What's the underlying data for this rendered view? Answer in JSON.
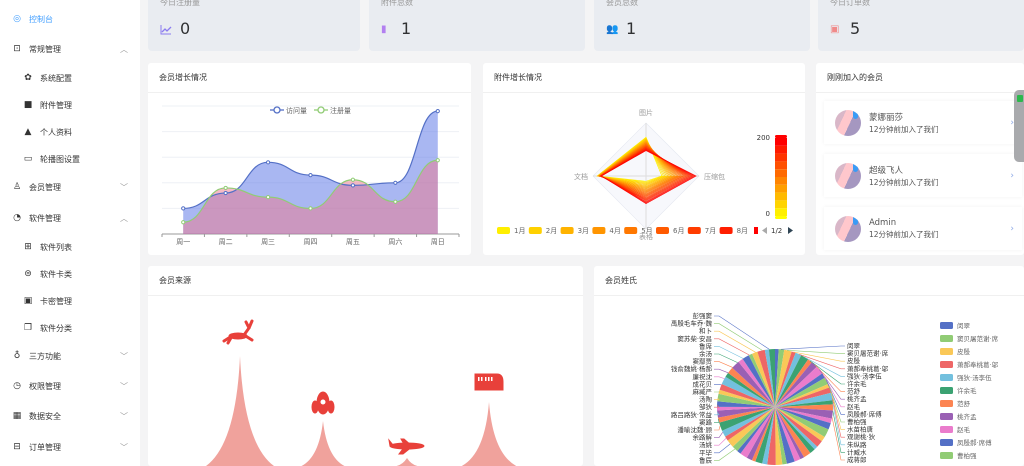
{
  "sidebar": {
    "items": [
      {
        "label": "控制台",
        "icon": "dashboard-icon",
        "active": true
      },
      {
        "label": "常规管理",
        "icon": "shop-icon",
        "expanded": true
      },
      {
        "label": "系统配置",
        "icon": "gear-icon",
        "sub": true
      },
      {
        "label": "附件管理",
        "icon": "folder-icon",
        "sub": true
      },
      {
        "label": "个人资料",
        "icon": "user-icon",
        "sub": true
      },
      {
        "label": "轮播图设置",
        "icon": "folder-check-icon",
        "sub": true
      },
      {
        "label": "会员管理",
        "icon": "user-outline-icon",
        "expanded": false
      },
      {
        "label": "软件管理",
        "icon": "software-icon",
        "expanded": true
      },
      {
        "label": "软件列表",
        "icon": "box-icon",
        "sub": true
      },
      {
        "label": "软件卡类",
        "icon": "database-icon",
        "sub": true
      },
      {
        "label": "卡密管理",
        "icon": "card-icon",
        "sub": true
      },
      {
        "label": "软件分类",
        "icon": "copy-icon",
        "sub": true
      },
      {
        "label": "三方功能",
        "icon": "globe-icon",
        "expanded": false
      },
      {
        "label": "权限管理",
        "icon": "clock-icon",
        "expanded": false
      },
      {
        "label": "数据安全",
        "icon": "grid-icon",
        "expanded": false
      },
      {
        "label": "订单管理",
        "icon": "order-icon",
        "expanded": false
      }
    ]
  },
  "stats": [
    {
      "label": "今日注册量",
      "value": "0",
      "icon": "chart-line-icon",
      "color": "#8c7cf0"
    },
    {
      "label": "附件总数",
      "value": "1",
      "icon": "file-icon",
      "color": "#b27ff0"
    },
    {
      "label": "会员总数",
      "value": "1",
      "icon": "users-icon",
      "color": "#5e9fb8"
    },
    {
      "label": "今日订单数",
      "value": "5",
      "icon": "order-box-icon",
      "color": "#f08a8a"
    }
  ],
  "member_growth": {
    "title": "会员增长情况"
  },
  "attachment_growth": {
    "title": "附件增长情况"
  },
  "recent_members": {
    "title": "刚刚加入的会员",
    "items": [
      {
        "name": "蒙娜丽莎",
        "time": "12分钟前加入了我们"
      },
      {
        "name": "超级飞人",
        "time": "12分钟前加入了我们"
      },
      {
        "name": "Admin",
        "time": "12分钟前加入了我们"
      }
    ]
  },
  "member_source": {
    "title": "会员来源"
  },
  "member_surname": {
    "title": "会员姓氏"
  },
  "chart_data": [
    {
      "type": "area",
      "categories": [
        "周一",
        "周二",
        "周三",
        "周四",
        "周五",
        "周六",
        "周日"
      ],
      "series": [
        {
          "name": "访问量",
          "values": [
            50,
            80,
            140,
            115,
            95,
            100,
            240
          ],
          "color": "#5470c6"
        },
        {
          "name": "注册量",
          "values": [
            23,
            90,
            72,
            50,
            106,
            63,
            144
          ],
          "color": "#91cc75"
        }
      ],
      "ylim": [
        0,
        250
      ],
      "grid": true,
      "legend": "top"
    },
    {
      "type": "radar",
      "indicators": [
        "图片",
        "压缩包",
        "表格",
        "文档"
      ],
      "legend": [
        "1月",
        "2月",
        "3月",
        "4月",
        "5月",
        "6月",
        "7月",
        "8月"
      ],
      "legend_page": "1/2",
      "visual_map": {
        "min": "0",
        "max": "200",
        "colors": [
          "#ffef00",
          "#ff0000"
        ]
      }
    },
    {
      "type": "pictorialBar",
      "items": [
        {
          "icon": "reindeer-icon",
          "value": 110
        },
        {
          "icon": "rocket-icon",
          "value": 45
        },
        {
          "icon": "plane-icon",
          "value": 8
        },
        {
          "icon": "train-icon",
          "value": 64
        }
      ],
      "color": "#e8403a"
    },
    {
      "type": "pie",
      "labels_left": [
        "彭强窦",
        "禹殷毛车乔·魏",
        "和卜",
        "窦苏柴·安昌",
        "鲁席",
        "余汤",
        "窦鄢贾",
        "钱俞魏姚·杨郝",
        "廉祝沈",
        "成花贝",
        "麻臧严",
        "汤陶",
        "邹狄",
        "路吕路狄·常益",
        "窦路",
        "潘喻沈魏·顾",
        "余路解",
        "汤姚",
        "平毕",
        "鲁辰"
      ],
      "labels_right": [
        "闵翠",
        "窦贝屠范谢·席",
        "皮殷",
        "萧郝奉桃葛·邬",
        "强狄·汤李伍",
        "许余毛",
        "范舒",
        "桃齐孟",
        "赵毛",
        "凤殷郝·席傅",
        "曹柏强",
        "水苗柏唐",
        "观谢桃·狄",
        "朱纵路",
        "计臧水",
        "成蒋郎"
      ],
      "legend": [
        "闵翠",
        "窦贝屠范谢·席",
        "皮殷",
        "萧郝奉桃葛·邬",
        "强狄·汤李伍",
        "许余毛",
        "范舒",
        "桃齐孟",
        "赵毛",
        "凤殷郝·席傅",
        "曹柏强"
      ],
      "colors": [
        "#5470c6",
        "#91cc75",
        "#fac858",
        "#ee6666",
        "#73c0de",
        "#3ba272",
        "#fc8452",
        "#9a60b4",
        "#ea7ccc"
      ],
      "legend_placement": "right"
    }
  ]
}
